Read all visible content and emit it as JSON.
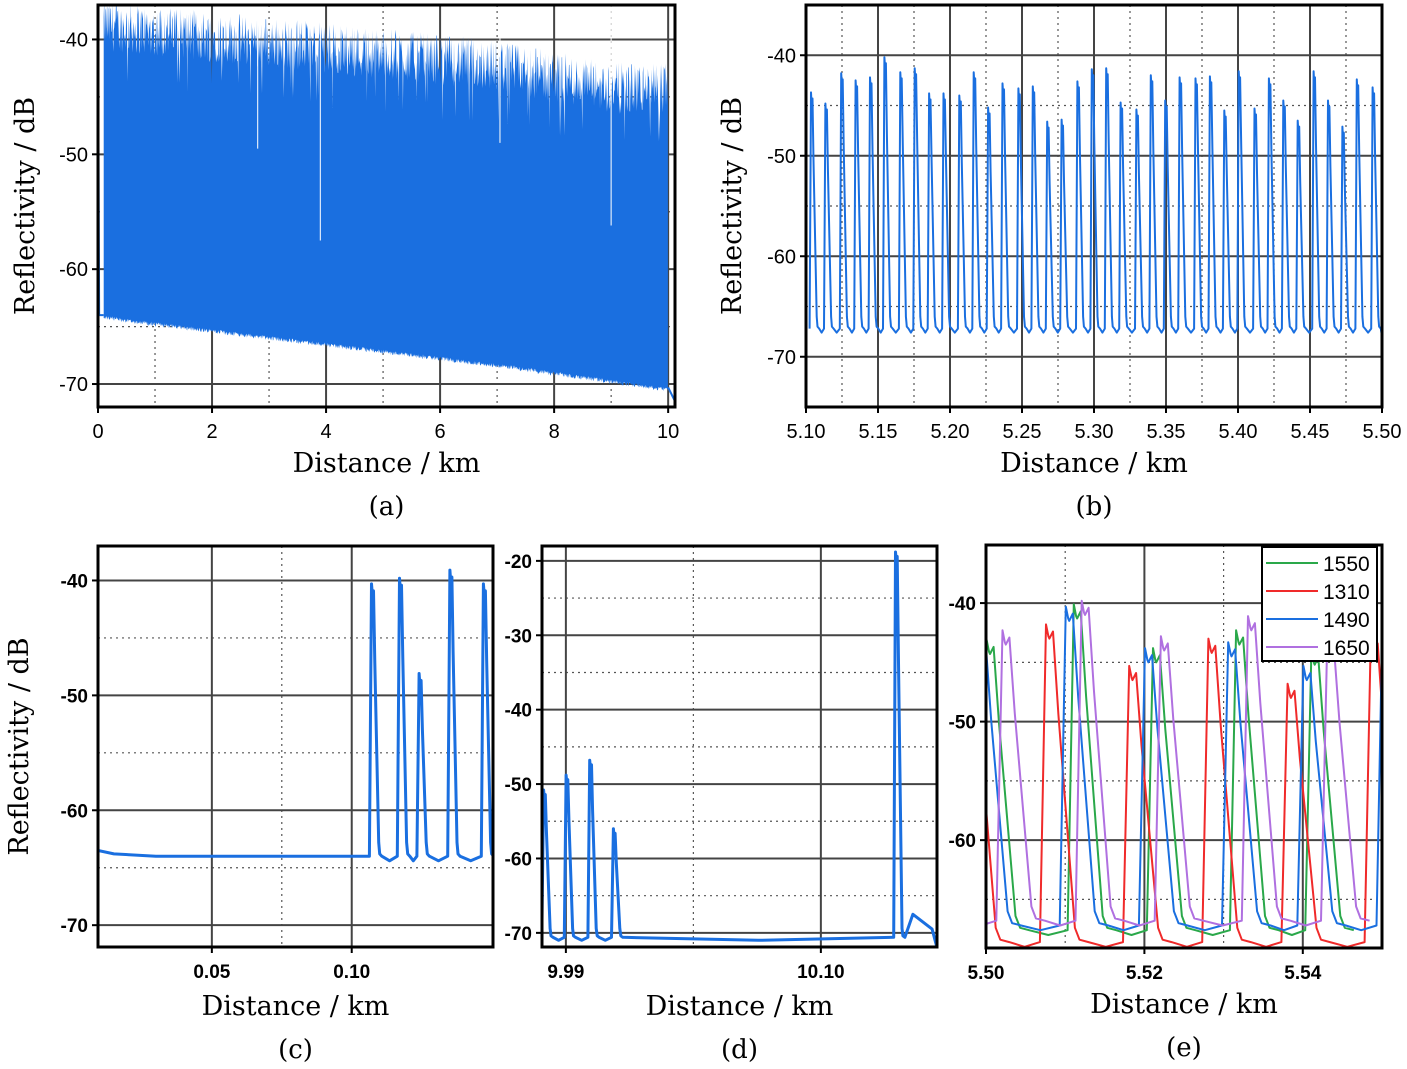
{
  "chart_data": [
    {
      "id": "a",
      "type": "area",
      "caption": "(a)",
      "xlabel": "Distance / km",
      "ylabel": "Reflectivity / dB",
      "xlim": [
        0,
        10.12
      ],
      "ylim": [
        -72,
        -37
      ],
      "xticks": [
        "0",
        "2",
        "4",
        "6",
        "8",
        "10"
      ],
      "xtick_values": [
        0,
        2,
        4,
        6,
        8,
        10
      ],
      "yticks": [
        "-40",
        "-50",
        "-60",
        "-70"
      ],
      "ytick_values": [
        -40,
        -50,
        -60,
        -70
      ],
      "minor_x": [
        1,
        3,
        5,
        7,
        9
      ],
      "minor_y": [
        -45,
        -55,
        -65
      ],
      "color": "#1a6fe0",
      "envelope": {
        "x": [
          0.1,
          1,
          2,
          3,
          4,
          5,
          6,
          7,
          8,
          9,
          10
        ],
        "upper": [
          -41,
          -41.5,
          -42,
          -42.5,
          -43,
          -43.5,
          -44,
          -44.5,
          -45.5,
          -46.5,
          -46.5
        ],
        "lower": [
          -64,
          -64.6,
          -65.2,
          -65.8,
          -66.4,
          -67,
          -67.6,
          -68.2,
          -68.9,
          -69.6,
          -70.3
        ]
      },
      "dips": [
        {
          "x": 3.9,
          "y": -57.5
        },
        {
          "x": 9.0,
          "y": -56.2
        },
        {
          "x": 7.05,
          "y": -49
        },
        {
          "x": 2.8,
          "y": -49.5
        }
      ]
    },
    {
      "id": "b",
      "type": "line",
      "caption": "(b)",
      "xlabel": "Distance / km",
      "ylabel": "Reflectivity / dB",
      "xlim": [
        5.1,
        5.5
      ],
      "ylim": [
        -75,
        -35
      ],
      "xticks": [
        "5.10",
        "5.15",
        "5.20",
        "5.25",
        "5.30",
        "5.35",
        "5.40",
        "5.45",
        "5.50"
      ],
      "xtick_values": [
        5.1,
        5.15,
        5.2,
        5.25,
        5.3,
        5.35,
        5.4,
        5.45,
        5.5
      ],
      "yticks": [
        "-40",
        "-50",
        "-60",
        "-70"
      ],
      "ytick_values": [
        -40,
        -50,
        -60,
        -70
      ],
      "minor_x": [
        5.125,
        5.175,
        5.225,
        5.275,
        5.325,
        5.375,
        5.425,
        5.475
      ],
      "minor_y": [
        -45,
        -55,
        -65
      ],
      "series": [
        {
          "name": "trace",
          "color": "#1a6fe0",
          "baseline": -67.2,
          "rise": 0.0015,
          "fall": 0.004,
          "peaks_x": [
            5.104,
            5.114,
            5.125,
            5.135,
            5.145,
            5.155,
            5.166,
            5.176,
            5.186,
            5.196,
            5.207,
            5.217,
            5.227,
            5.237,
            5.248,
            5.258,
            5.268,
            5.278,
            5.289,
            5.299,
            5.309,
            5.319,
            5.33,
            5.34,
            5.35,
            5.36,
            5.371,
            5.381,
            5.391,
            5.401,
            5.412,
            5.422,
            5.432,
            5.442,
            5.453,
            5.463,
            5.473,
            5.483,
            5.494,
            5.5015
          ],
          "peaks_y": [
            -44.9,
            -46,
            -43,
            -43.7,
            -43.4,
            -41.4,
            -42.9,
            -42.5,
            -45,
            -45,
            -45.2,
            -42.9,
            -46.4,
            -44,
            -44.5,
            -44.3,
            -47.8,
            -47.6,
            -43.8,
            -42.6,
            -42.5,
            -45.9,
            -46.6,
            -43.2,
            -45.7,
            -43.4,
            -43.5,
            -43.3,
            -46.7,
            -42.8,
            -46.5,
            -43.5,
            -45.7,
            -47.7,
            -42.8,
            -45.7,
            -48.3,
            -43.6,
            -44.4,
            -45
          ]
        }
      ]
    },
    {
      "id": "c",
      "type": "line",
      "caption": "(c)",
      "xlabel": "Distance / km",
      "ylabel": "Reflectivity / dB",
      "xlim": [
        0.0093,
        0.1505
      ],
      "ylim": [
        -71.9,
        -37
      ],
      "xticks": [
        "0.05",
        "0.10"
      ],
      "xtick_values": [
        0.05,
        0.1
      ],
      "yticks": [
        "-40",
        "-50",
        "-60",
        "-70"
      ],
      "ytick_values": [
        -40,
        -50,
        -60,
        -70
      ],
      "minor_x": [
        0.075
      ],
      "minor_y": [
        -45,
        -55,
        -65
      ],
      "series": [
        {
          "name": "trace",
          "color": "#1a6fe0",
          "baseline": -64.0,
          "rise": 0.0012,
          "fall": 0.0025,
          "peaks_x": [
            0.1075,
            0.1175,
            0.1245,
            0.1355,
            0.1475
          ],
          "peaks_y": [
            -41.5,
            -41,
            -49.3,
            -40.3,
            -41.5
          ],
          "lead": [
            [
              0.0093,
              -63.5
            ],
            [
              0.015,
              -63.8
            ],
            [
              0.03,
              -64
            ],
            [
              0.06,
              -64
            ],
            [
              0.1035,
              -64
            ]
          ]
        }
      ]
    },
    {
      "id": "d",
      "type": "line",
      "caption": "(d)",
      "xlabel": "Distance / km",
      "ylabel": "",
      "xlim": [
        9.9797,
        10.1501
      ],
      "ylim": [
        -71.9,
        -18
      ],
      "xticks": [
        "9.99",
        "10.10"
      ],
      "xtick_values": [
        9.99,
        10.1
      ],
      "yticks": [
        "-20",
        "-30",
        "-40",
        "-50",
        "-60",
        "-70"
      ],
      "ytick_values": [
        -20,
        -30,
        -40,
        -50,
        -60,
        -70
      ],
      "minor_x": [
        10.045
      ],
      "minor_y": [
        -25,
        -35,
        -45,
        -55,
        -65
      ],
      "series": [
        {
          "name": "trace",
          "color": "#1a6fe0",
          "baseline": -70.6,
          "rise": 0.0012,
          "fall": 0.0028,
          "peaks_x": [
            9.9808,
            9.9905,
            10.0007,
            10.0109,
            10.1326
          ],
          "peaks_y": [
            -52,
            -50,
            -48,
            -57.2,
            -20
          ],
          "tail": [
            [
              10.1397,
              -67.5
            ],
            [
              10.148,
              -69.5
            ],
            [
              10.1501,
              -72
            ]
          ]
        }
      ]
    },
    {
      "id": "e",
      "type": "line",
      "caption": "(e)",
      "xlabel": "Distance / km",
      "ylabel": "",
      "xlim": [
        5.5,
        5.55
      ],
      "ylim": [
        -69.1,
        -35.1
      ],
      "xticks": [
        "5.50",
        "5.52",
        "5.54"
      ],
      "xtick_values": [
        5.5,
        5.52,
        5.54
      ],
      "yticks": [
        "-40",
        "-50",
        "-60"
      ],
      "ytick_values": [
        -40,
        -50,
        -60
      ],
      "minor_x": [
        5.51,
        5.53
      ],
      "minor_y": [
        -45,
        -55,
        -65
      ],
      "legend": {
        "placement": "top-right"
      },
      "series": [
        {
          "name": "1550",
          "color": "#2aa84a",
          "baseline": -67.6,
          "rise": 0.0012,
          "fall": 0.0038,
          "peaks_x": [
            5.5005,
            5.5115,
            5.5215,
            5.532,
            5.5415
          ],
          "peaks_y": [
            -44.3,
            -41.3,
            -45,
            -43.5,
            -45.2
          ]
        },
        {
          "name": "1310",
          "color": "#f02a2a",
          "baseline": -68.6,
          "rise": 0.0012,
          "fall": 0.0038,
          "peaks_x": [
            5.498,
            5.508,
            5.5185,
            5.5285,
            5.5385,
            5.549
          ],
          "peaks_y": [
            -44,
            -43,
            -46.5,
            -44.2,
            -48,
            -44
          ]
        },
        {
          "name": "1490",
          "color": "#1a6fe0",
          "baseline": -67.2,
          "rise": 0.0012,
          "fall": 0.0038,
          "peaks_x": [
            5.4995,
            5.5105,
            5.5205,
            5.531,
            5.5405,
            5.5505
          ],
          "peaks_y": [
            -44,
            -41.5,
            -45,
            -44.5,
            -46.5,
            -42
          ]
        },
        {
          "name": "1650",
          "color": "#b070e0",
          "baseline": -66.8,
          "rise": 0.0012,
          "fall": 0.0038,
          "peaks_x": [
            5.4925,
            5.5025,
            5.5125,
            5.5225,
            5.5335,
            5.5435
          ],
          "peaks_y": [
            -44,
            -43.5,
            -41,
            -44,
            -42.3,
            -44.5
          ]
        }
      ]
    }
  ]
}
